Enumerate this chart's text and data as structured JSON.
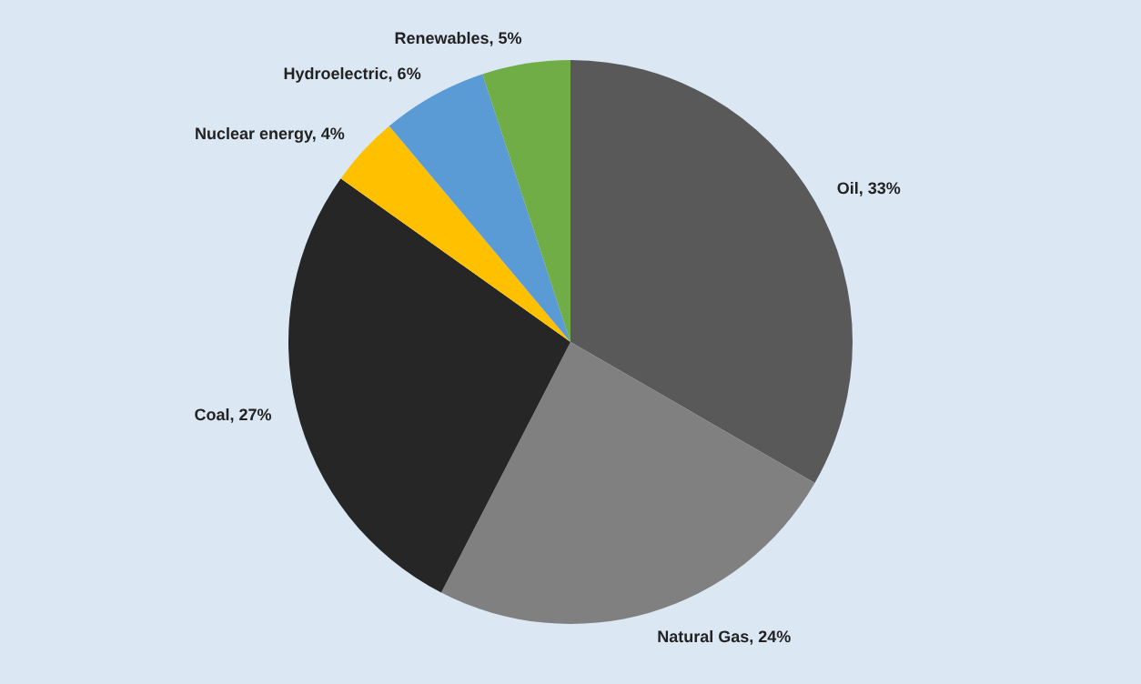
{
  "chart_data": {
    "type": "pie",
    "categories": [
      "Oil",
      "Natural Gas",
      "Coal",
      "Nuclear energy",
      "Hydroelectric",
      "Renewables"
    ],
    "values": [
      33,
      24,
      27,
      4,
      6,
      5
    ],
    "colors": [
      "#595959",
      "#808080",
      "#262626",
      "#ffc000",
      "#5b9bd5",
      "#70ad47"
    ],
    "value_labels": [
      "33%",
      "24%",
      "27%",
      "4%",
      "6%",
      "5%"
    ]
  }
}
